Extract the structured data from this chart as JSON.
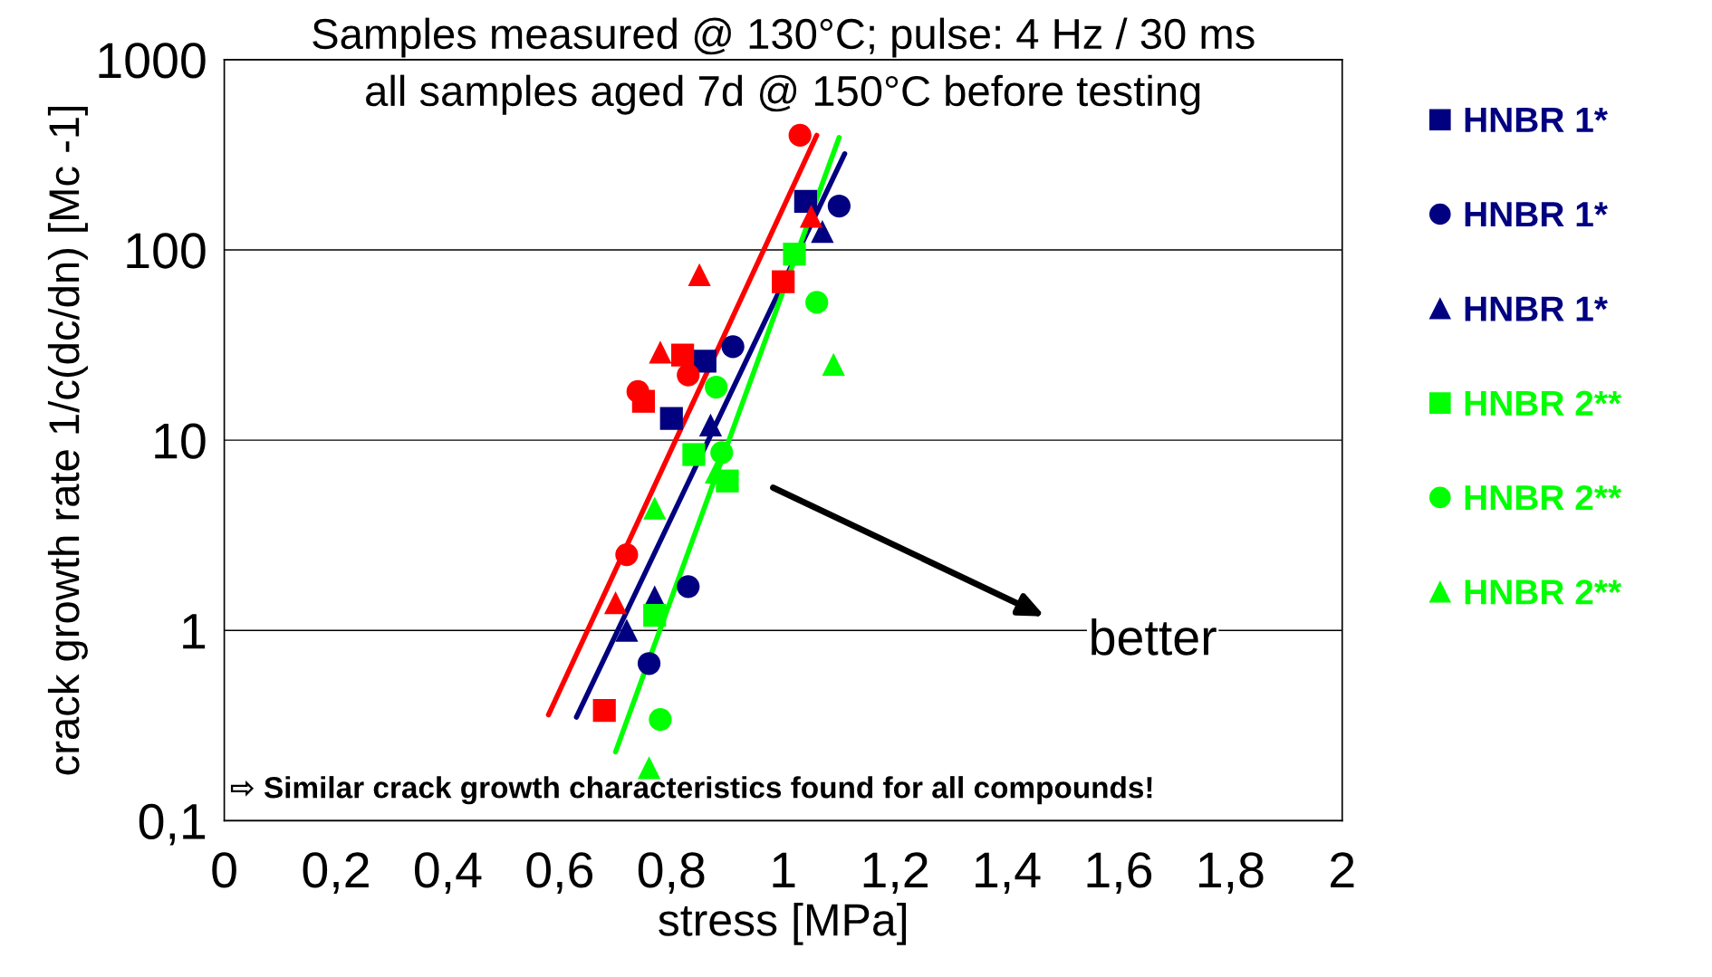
{
  "chart_data": {
    "type": "scatter",
    "title": "Samples measured @ 130°C; pulse: 4 Hz / 30 ms",
    "subtitle": "all samples aged 7d @ 150°C before testing",
    "xlabel": "stress [MPa]",
    "ylabel": "crack growth rate 1/c(dc/dn) [Mc -1]",
    "annotations": [
      "better",
      "⇨ Similar crack growth characteristics found for all compounds!"
    ],
    "log": "y",
    "grid": "y",
    "legend": "right",
    "xlim": [
      0,
      2
    ],
    "xticks": [
      0,
      {
        "value": 0.2,
        "label": "0,2"
      },
      {
        "value": 0.4,
        "label": "0,4"
      },
      {
        "value": 0.6,
        "label": "0,6"
      },
      {
        "value": 0.8,
        "label": "0,8"
      },
      1,
      {
        "value": 1.2,
        "label": "1,2"
      },
      {
        "value": 1.4,
        "label": "1,4"
      },
      {
        "value": 1.6,
        "label": "1,6"
      },
      {
        "value": 1.8,
        "label": "1,8"
      },
      2
    ],
    "ylim": [
      0.1,
      1000
    ],
    "yticks": [
      {
        "value": 0.1,
        "label": "0,1"
      },
      1,
      10,
      100,
      1000
    ],
    "series": [
      {
        "name": "HNBR 1*",
        "color": "#000080",
        "marker": "square",
        "x": [
          1.04,
          0.86,
          0.8
        ],
        "values": [
          180,
          26,
          13
        ]
      },
      {
        "name": "HNBR 1*",
        "color": "#000080",
        "marker": "circle",
        "x": [
          1.1,
          0.91,
          0.83,
          0.76
        ],
        "values": [
          170,
          31,
          1.7,
          0.67
        ]
      },
      {
        "name": "HNBR 1*",
        "color": "#000080",
        "marker": "triangle",
        "x": [
          1.07,
          0.87,
          0.77,
          0.72
        ],
        "values": [
          125,
          12,
          1.5,
          1.0
        ]
      },
      {
        "name": "HNBR 2**",
        "color": "#00ff00",
        "marker": "square",
        "x": [
          1.02,
          0.84,
          0.9,
          0.77
        ],
        "values": [
          95,
          8.4,
          6.1,
          1.2
        ]
      },
      {
        "name": "HNBR 2**",
        "color": "#00ff00",
        "marker": "circle",
        "x": [
          1.06,
          0.88,
          0.89,
          0.78
        ],
        "values": [
          53,
          19,
          8.6,
          0.34
        ]
      },
      {
        "name": "HNBR 2**",
        "color": "#00ff00",
        "marker": "triangle",
        "x": [
          1.09,
          0.88,
          0.77,
          0.76
        ],
        "values": [
          25,
          6.8,
          4.4,
          0.19
        ]
      },
      {
        "color": "#ff0000",
        "marker": "square",
        "x": [
          1.0,
          0.82,
          0.75,
          0.68
        ],
        "values": [
          68,
          28,
          16,
          0.38
        ]
      },
      {
        "color": "#ff0000",
        "marker": "circle",
        "x": [
          1.03,
          0.83,
          0.74,
          0.72
        ],
        "values": [
          400,
          22,
          18,
          2.5
        ]
      },
      {
        "color": "#ff0000",
        "marker": "triangle",
        "x": [
          1.05,
          0.85,
          0.78,
          0.7
        ],
        "values": [
          150,
          74,
          29,
          1.4
        ]
      },
      {
        "type": "line",
        "color": "#ff0000",
        "marker": "none",
        "x": [
          0.58,
          1.06
        ],
        "values": [
          0.36,
          400
        ]
      },
      {
        "type": "line",
        "color": "#000080",
        "marker": "none",
        "x": [
          0.63,
          1.11
        ],
        "values": [
          0.35,
          320
        ]
      },
      {
        "type": "line",
        "color": "#00ff00",
        "marker": "none",
        "x": [
          0.7,
          1.1
        ],
        "values": [
          0.23,
          390
        ]
      }
    ]
  }
}
